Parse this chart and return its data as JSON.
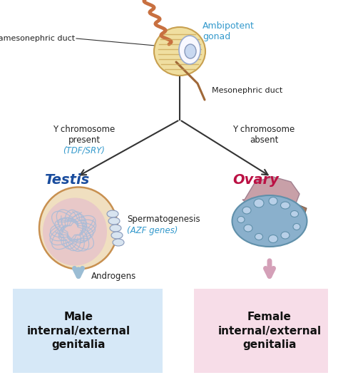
{
  "bg_color": "#ffffff",
  "gonad_label": "Ambipotent\ngonad",
  "gonad_label_color": "#3399cc",
  "parames_label": "Paramesonephric duct",
  "meso_label": "Mesonephric duct",
  "left_branch_label1": "Y chromosome",
  "left_branch_label2": "present",
  "left_branch_label3": "(TDF/SRY)",
  "right_branch_label1": "Y chromosome",
  "right_branch_label2": "absent",
  "testis_label": "Testis",
  "testis_color": "#1a4d9e",
  "ovary_label": "Ovary",
  "ovary_color": "#bb1144",
  "sperm_label1": "Spermatogenesis",
  "sperm_label2": "(AZF genes)",
  "sperm_label_color": "#3399cc",
  "androgens_label": "Androgens",
  "male_box_text": "Male\ninternal/external\ngenitalia",
  "female_box_text": "Female\ninternal/external\ngenitalia",
  "male_box_color": "#d6e8f7",
  "female_box_color": "#f7dde8",
  "arrow_dark": "#333333",
  "arrow_blue": "#9bbdd4",
  "arrow_pink": "#d4a0b8"
}
